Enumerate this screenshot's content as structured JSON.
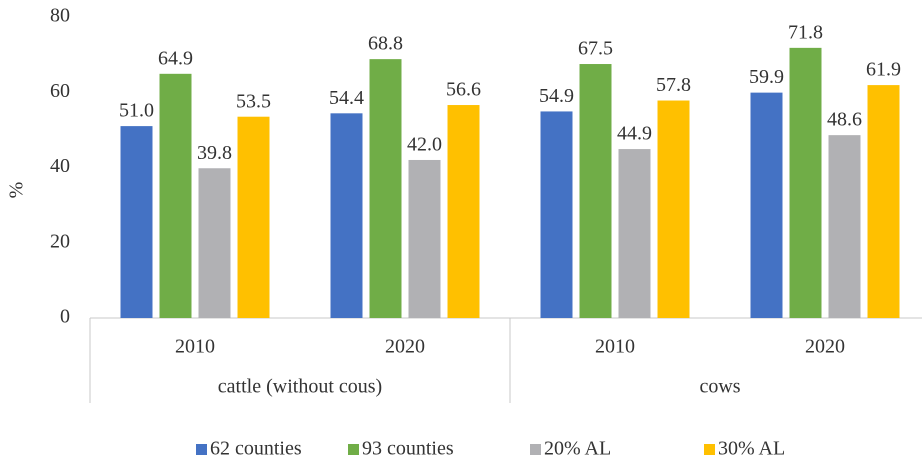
{
  "chart_data": {
    "type": "bar",
    "y_label": "%",
    "categories": [
      "2010",
      "2020",
      "2010",
      "2020"
    ],
    "groups": [
      "cattle (without cous)",
      "cows"
    ],
    "series": [
      {
        "name": "62 counties",
        "color": "#4472c4",
        "values": [
          51.0,
          54.4,
          54.9,
          59.9
        ],
        "value_labels": [
          "51.0",
          "54.4",
          "54.9",
          "59.9"
        ]
      },
      {
        "name": "93 counties",
        "color": "#70ad47",
        "values": [
          64.9,
          68.8,
          67.5,
          71.8
        ],
        "value_labels": [
          "64.9",
          "68.8",
          "67.5",
          "71.8"
        ]
      },
      {
        "name": "20% AL",
        "color": "#b1b1b4",
        "values": [
          39.8,
          42.0,
          44.9,
          48.6
        ],
        "value_labels": [
          "39.8",
          "42.0",
          "44.9",
          "48.6"
        ]
      },
      {
        "name": "30% AL",
        "color": "#ffc000",
        "values": [
          53.5,
          56.6,
          57.8,
          61.9
        ],
        "value_labels": [
          "53.5",
          "56.6",
          "57.8",
          "61.9"
        ]
      }
    ],
    "ylim": [
      0,
      80
    ],
    "yticks": [
      0,
      20,
      40,
      60,
      80
    ],
    "grid": false,
    "legend": "bottom"
  }
}
